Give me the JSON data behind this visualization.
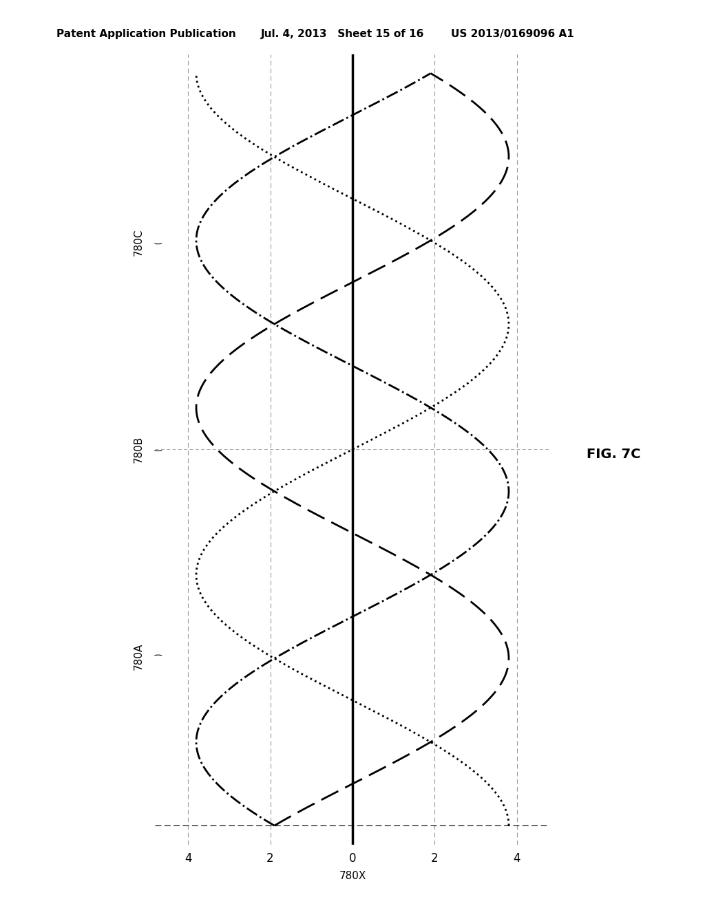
{
  "header_left": "Patent Application Publication",
  "header_mid": "Jul. 4, 2013   Sheet 15 of 16",
  "header_right": "US 2013/0169096 A1",
  "fig_label": "FIG. 7C",
  "xlabel_label": "780X",
  "label_780A": "780A",
  "label_780B": "780B",
  "label_780C": "780C",
  "xlim": [
    -4.8,
    4.8
  ],
  "ylim": [
    -1.05,
    1.05
  ],
  "xticks": [
    -4,
    -2,
    0,
    2,
    4
  ],
  "xgrid_positions": [
    -4,
    -2,
    0,
    2,
    4
  ],
  "amplitude": 4.2,
  "omega": 2.356194,
  "phase_A": 0.0,
  "phase_B": 2.0943951,
  "phase_C": 4.1887902,
  "background_color": "#ffffff",
  "line_color": "#000000",
  "grid_color": "#999999",
  "header_fontsize": 11,
  "tick_fontsize": 12,
  "label_fontsize": 11,
  "fig_label_fontsize": 14
}
